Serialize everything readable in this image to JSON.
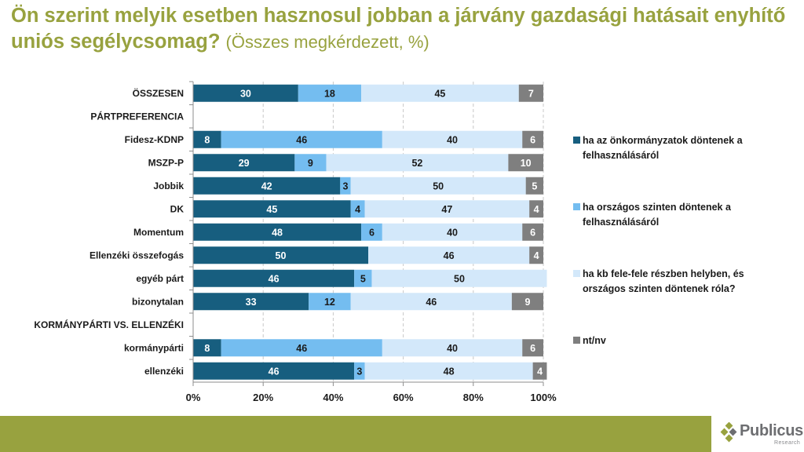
{
  "header": {
    "title": "Ön szerint melyik esetben hasznosul jobban a járvány gazdasági hatásait enyhítő uniós segélycsomag?",
    "subtitle": "(Összes megkérdezett, %)"
  },
  "chart_data": {
    "type": "bar",
    "orientation": "horizontal",
    "stacked": true,
    "percent_stacked": true,
    "title": "Ön szerint melyik esetben hasznosul jobban a járvány gazdasági hatásait enyhítő uniós segélycsomag? (Összes megkérdezett, %)",
    "xlabel": "",
    "ylabel": "",
    "xlim": [
      0,
      100
    ],
    "x_ticks": [
      "0%",
      "20%",
      "40%",
      "60%",
      "80%",
      "100%"
    ],
    "grid": "vertical dashed",
    "legend_position": "right",
    "categories": [
      {
        "label": "ÖSSZESEN",
        "is_header": false
      },
      {
        "label": "PÁRTPREFERENCIA",
        "is_header": true
      },
      {
        "label": "Fidesz-KDNP",
        "is_header": false
      },
      {
        "label": "MSZP-P",
        "is_header": false
      },
      {
        "label": "Jobbik",
        "is_header": false
      },
      {
        "label": "DK",
        "is_header": false
      },
      {
        "label": "Momentum",
        "is_header": false
      },
      {
        "label": "Ellenzéki összefogás",
        "is_header": false
      },
      {
        "label": "egyéb párt",
        "is_header": false
      },
      {
        "label": "bizonytalan",
        "is_header": false
      },
      {
        "label": "KORMÁNYPÁRTI VS. ELLENZÉKI",
        "is_header": true
      },
      {
        "label": "kormánypárti",
        "is_header": false
      },
      {
        "label": "ellenzéki",
        "is_header": false
      }
    ],
    "series": [
      {
        "name": "ha az önkormányzatok döntenek a felhasználásáról",
        "color": "#175E7F",
        "label_color": "#ffffff",
        "values": [
          30,
          null,
          8,
          29,
          42,
          45,
          48,
          50,
          46,
          33,
          null,
          8,
          46
        ]
      },
      {
        "name": "ha országos szinten döntenek a felhasználásáról",
        "color": "#74BDF0",
        "label_color": "#1a1a1a",
        "values": [
          18,
          null,
          46,
          9,
          3,
          4,
          6,
          0,
          5,
          12,
          null,
          46,
          3
        ]
      },
      {
        "name": "ha kb fele-fele részben helyben, és országos szinten döntenek róla?",
        "color": "#D3E8FA",
        "label_color": "#1a1a1a",
        "values": [
          45,
          null,
          40,
          52,
          50,
          47,
          40,
          46,
          50,
          46,
          null,
          40,
          48
        ]
      },
      {
        "name": "nt/nv",
        "color": "#7F7F7F",
        "label_color": "#ffffff",
        "values": [
          7,
          null,
          6,
          10,
          5,
          4,
          6,
          4,
          0,
          9,
          null,
          6,
          4
        ]
      }
    ]
  },
  "footer": {
    "brand": "Publicus",
    "brand_sub": "Research",
    "band_color": "#98A23F"
  }
}
